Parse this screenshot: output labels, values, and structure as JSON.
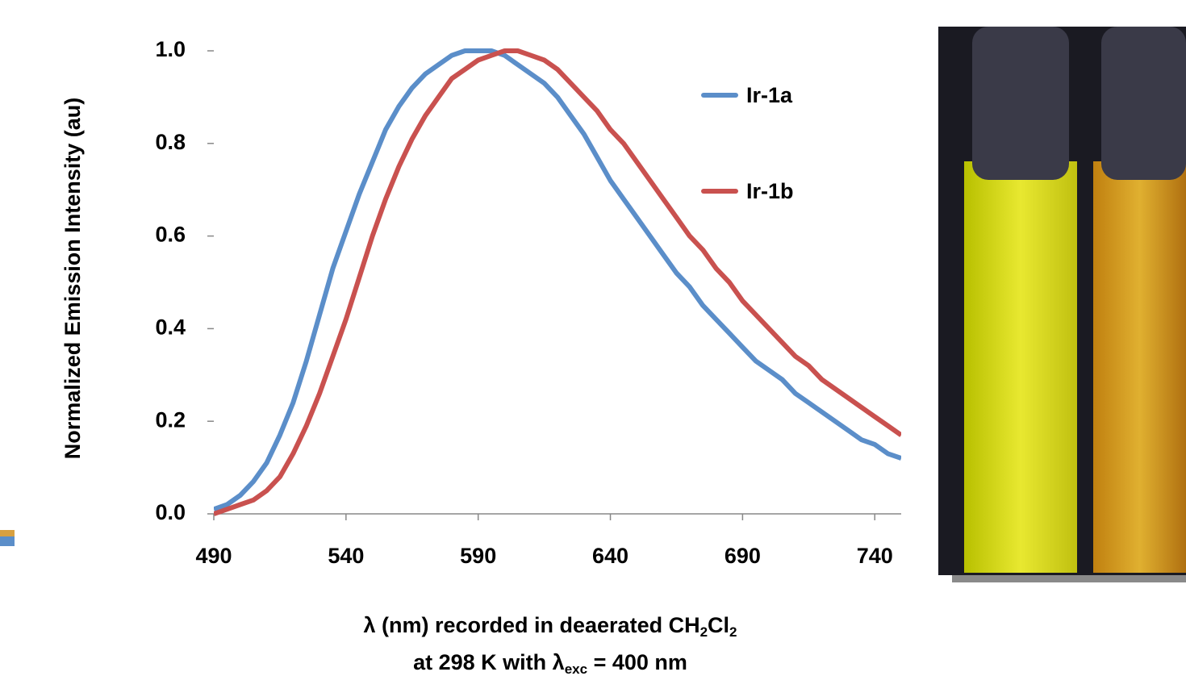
{
  "chart_data": {
    "type": "line",
    "y_label": "Normalized Emission Intensity (au)",
    "x_label": [
      [
        "λ (nm) recorded in deaerated CH",
        "2",
        "Cl",
        "2"
      ],
      [
        "at 298 K with λ",
        "exc",
        " = 400 nm"
      ]
    ],
    "x": [
      490,
      495,
      500,
      505,
      510,
      515,
      520,
      525,
      530,
      535,
      540,
      545,
      550,
      555,
      560,
      565,
      570,
      575,
      580,
      585,
      590,
      595,
      600,
      605,
      610,
      615,
      620,
      625,
      630,
      635,
      640,
      645,
      650,
      655,
      660,
      665,
      670,
      675,
      680,
      685,
      690,
      695,
      700,
      705,
      710,
      715,
      720,
      725,
      730,
      735,
      740,
      745,
      750
    ],
    "series": [
      {
        "name": "Ir-1a",
        "color": "#5b8ec9",
        "values": [
          0.01,
          0.02,
          0.04,
          0.07,
          0.11,
          0.17,
          0.24,
          0.33,
          0.43,
          0.53,
          0.61,
          0.69,
          0.76,
          0.83,
          0.88,
          0.92,
          0.95,
          0.97,
          0.99,
          1.0,
          1.0,
          1.0,
          0.99,
          0.97,
          0.95,
          0.93,
          0.9,
          0.86,
          0.82,
          0.77,
          0.72,
          0.68,
          0.64,
          0.6,
          0.56,
          0.52,
          0.49,
          0.45,
          0.42,
          0.39,
          0.36,
          0.33,
          0.31,
          0.29,
          0.26,
          0.24,
          0.22,
          0.2,
          0.18,
          0.16,
          0.15,
          0.13,
          0.12
        ]
      },
      {
        "name": "Ir-1b",
        "color": "#c9514f",
        "values": [
          0.0,
          0.01,
          0.02,
          0.03,
          0.05,
          0.08,
          0.13,
          0.19,
          0.26,
          0.34,
          0.42,
          0.51,
          0.6,
          0.68,
          0.75,
          0.81,
          0.86,
          0.9,
          0.94,
          0.96,
          0.98,
          0.99,
          1.0,
          1.0,
          0.99,
          0.98,
          0.96,
          0.93,
          0.9,
          0.87,
          0.83,
          0.8,
          0.76,
          0.72,
          0.68,
          0.64,
          0.6,
          0.57,
          0.53,
          0.5,
          0.46,
          0.43,
          0.4,
          0.37,
          0.34,
          0.32,
          0.29,
          0.27,
          0.25,
          0.23,
          0.21,
          0.19,
          0.17
        ]
      }
    ],
    "xlim": [
      490,
      750
    ],
    "ylim": [
      0,
      1
    ],
    "xticks": [
      490,
      540,
      590,
      640,
      690,
      740
    ],
    "yticks": [
      {
        "value": 0,
        "label": "0.0"
      },
      {
        "value": 0.2,
        "label": "0.2"
      },
      {
        "value": 0.4,
        "label": "0.4"
      },
      {
        "value": 0.6,
        "label": "0.6"
      },
      {
        "value": 0.8,
        "label": "0.8"
      },
      {
        "value": 1,
        "label": "1.0"
      }
    ],
    "grid": false
  }
}
